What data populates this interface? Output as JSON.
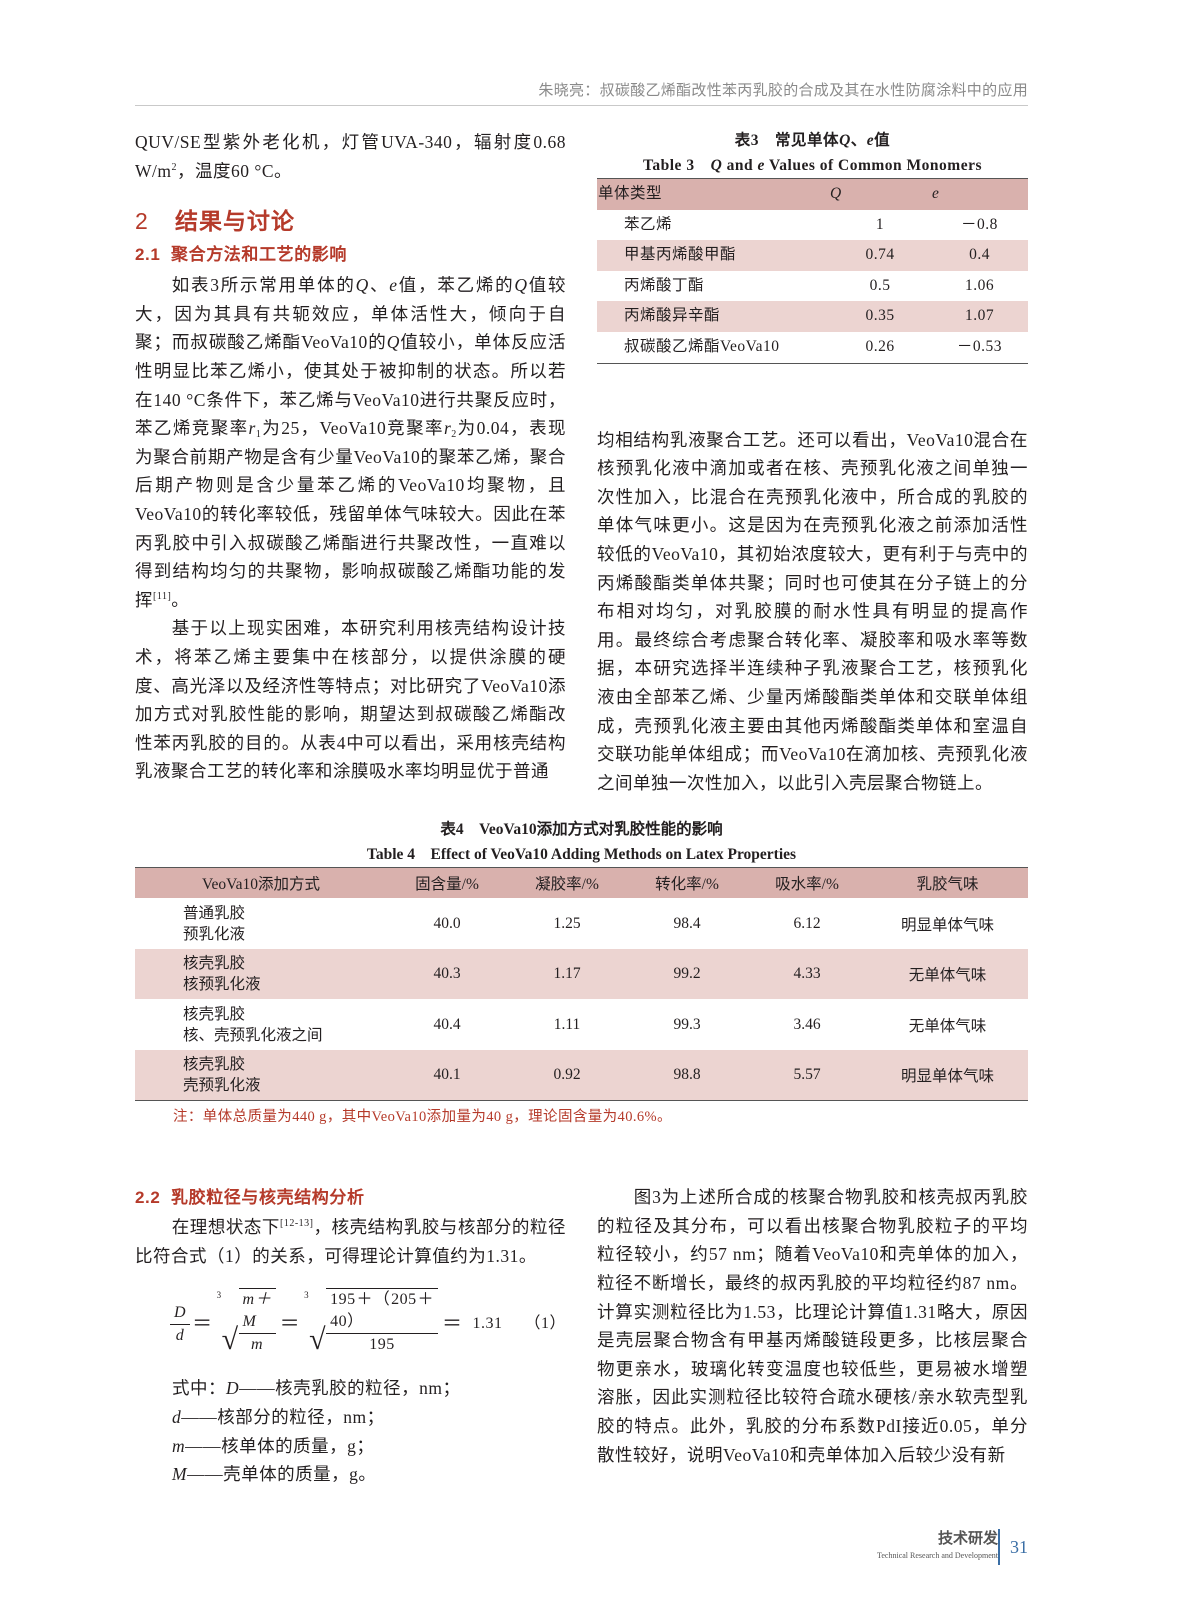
{
  "header": {
    "running_title": "朱晓亮：叔碳酸乙烯酯改性苯丙乳胶的合成及其在水性防腐涂料中的应用"
  },
  "left": {
    "p1": [
      "QUV/SE型紫外老化机，灯管UVA-340，辐射度0.68 W/m",
      "2",
      "，温度60 °C。"
    ],
    "sec2": {
      "num": "2",
      "title": "结果与讨论"
    },
    "sec21": {
      "num": "2.1",
      "title": "聚合方法和工艺的影响"
    },
    "p2": [
      "如表3所示常用单体的",
      "Q",
      "、",
      "e",
      "值，苯乙烯的",
      "Q",
      "值较大，因为其具有共轭效应，单体活性大，倾向于自聚；而叔碳酸乙烯酯VeoVa10的",
      "Q",
      "值较小，单体反应活性明显比苯乙烯小，使其处于被抑制的状态。所以若在140 °C条件下，苯乙烯与VeoVa10进行共聚反应时，苯乙烯竞聚率",
      "r",
      "1",
      "为25，VeoVa10竞聚率",
      "r",
      "2",
      "为0.04，表现为聚合前期产物是含有少量VeoVa10的聚苯乙烯，聚合后期产物则是含少量苯乙烯的VeoVa10均聚物，且VeoVa10的转化率较低，残留单体气味较大。因此在苯丙乳胶中引入叔碳酸乙烯酯进行共聚改性，一直难以得到结构均匀的共聚物，影响叔碳酸乙烯酯功能的发挥",
      "[11]",
      "。"
    ],
    "p3": "基于以上现实困难，本研究利用核壳结构设计技术，将苯乙烯主要集中在核部分，以提供涂膜的硬度、高光泽以及经济性等特点；对比研究了VeoVa10添加方式对乳胶性能的影响，期望达到叔碳酸乙烯酯改性苯丙乳胶的目的。从表4中可以看出，采用核壳结构乳液聚合工艺的转化率和涂膜吸水率均明显优于普通",
    "sec22": {
      "num": "2.2",
      "title": "乳胶粒径与核壳结构分析"
    },
    "p5": [
      "在理想状态下",
      "[12-13]",
      "，核壳结构乳胶与核部分的粒径比符合式（1）的关系，可得理论计算值约为1.31。"
    ],
    "formula": {
      "lhs_num": "D",
      "lhs_den": "d",
      "r1_num": "m＋M",
      "r1_den": "m",
      "r2_num": "195＋（205＋40）",
      "r2_den": "195",
      "root_index": "3",
      "result": "1.31",
      "eq_no": "（1）"
    },
    "defs": [
      {
        "prefix": "式中：",
        "sym": "D",
        "text": "——核壳乳胶的粒径，nm；"
      },
      {
        "prefix": "",
        "sym": "d",
        "text": "——核部分的粒径，nm；"
      },
      {
        "prefix": "",
        "sym": "m",
        "text": "——核单体的质量，g；"
      },
      {
        "prefix": "",
        "sym": "M",
        "text": "——壳单体的质量，g。"
      }
    ]
  },
  "right": {
    "p4": "均相结构乳液聚合工艺。还可以看出，VeoVa10混合在核预乳化液中滴加或者在核、壳预乳化液之间单独一次性加入，比混合在壳预乳化液中，所合成的乳胶的单体气味更小。这是因为在壳预乳化液之前添加活性较低的VeoVa10，其初始浓度较大，更有利于与壳中的丙烯酸酯类单体共聚；同时也可使其在分子链上的分布相对均匀，对乳胶膜的耐水性具有明显的提高作用。最终综合考虑聚合转化率、凝胶率和吸水率等数据，本研究选择半连续种子乳液聚合工艺，核预乳化液由全部苯乙烯、少量丙烯酸酯类单体和交联单体组成，壳预乳化液主要由其他丙烯酸酯类单体和室温自交联功能单体组成；而VeoVa10在滴加核、壳预乳化液之间单独一次性加入，以此引入壳层聚合物链上。",
    "p6": "图3为上述所合成的核聚合物乳胶和核壳叔丙乳胶的粒径及其分布，可以看出核聚合物乳胶粒子的平均粒径较小，约57 nm；随着VeoVa10和壳单体的加入，粒径不断增长，最终的叔丙乳胶的平均粒径约87 nm。计算实测粒径比为1.53，比理论计算值1.31略大，原因是壳层聚合物含有甲基丙烯酸链段更多，比核层聚合物更亲水，玻璃化转变温度也较低些，更易被水增塑溶胀，因此实测粒径比较符合疏水硬核/亲水软壳型乳胶的特点。此外，乳胶的分布系数PdI接近0.05，单分散性较好，说明VeoVa10和壳单体加入后较少没有新"
  },
  "table3": {
    "caption_cn": [
      "表3　常见单体",
      "Q",
      "、",
      "e",
      "值"
    ],
    "caption_en": [
      "Table 3　",
      "Q",
      " and ",
      "e",
      " Values of Common Monomers"
    ],
    "headers": [
      "单体类型",
      "Q",
      "e"
    ],
    "rows": [
      [
        "苯乙烯",
        "1",
        "－0.8"
      ],
      [
        "甲基丙烯酸甲酯",
        "0.74",
        "0.4"
      ],
      [
        "丙烯酸丁酯",
        "0.5",
        "1.06"
      ],
      [
        "丙烯酸异辛酯",
        "0.35",
        "1.07"
      ],
      [
        "叔碳酸乙烯酯VeoVa10",
        "0.26",
        "－0.53"
      ]
    ]
  },
  "table4": {
    "caption_cn": "表4　VeoVa10添加方式对乳胶性能的影响",
    "caption_en": "Table 4　Effect of VeoVa10 Adding Methods on Latex Properties",
    "headers": [
      "VeoVa10添加方式",
      "固含量/%",
      "凝胶率/%",
      "转化率/%",
      "吸水率/%",
      "乳胶气味"
    ],
    "rows": [
      {
        "m1": "普通乳胶",
        "m2": "预乳化液",
        "cells": [
          "40.0",
          "1.25",
          "98.4",
          "6.12",
          "明显单体气味"
        ]
      },
      {
        "m1": "核壳乳胶",
        "m2": "核预乳化液",
        "cells": [
          "40.3",
          "1.17",
          "99.2",
          "4.33",
          "无单体气味"
        ]
      },
      {
        "m1": "核壳乳胶",
        "m2": "核、壳预乳化液之间",
        "cells": [
          "40.4",
          "1.11",
          "99.3",
          "3.46",
          "无单体气味"
        ]
      },
      {
        "m1": "核壳乳胶",
        "m2": "壳预乳化液",
        "cells": [
          "40.1",
          "0.92",
          "98.8",
          "5.57",
          "明显单体气味"
        ]
      }
    ],
    "note": "注：单体总质量为440 g，其中VeoVa10添加量为40 g，理论固含量为40.6%。"
  },
  "footer": {
    "section_cn": "技术研发",
    "section_en": "Technical Research and Development",
    "page": "31"
  },
  "colors": {
    "heading": "#b53a2a",
    "table_header": "#d9b1ad",
    "table_shade": "#ecd4d1",
    "page_number": "#3a6ea5"
  }
}
